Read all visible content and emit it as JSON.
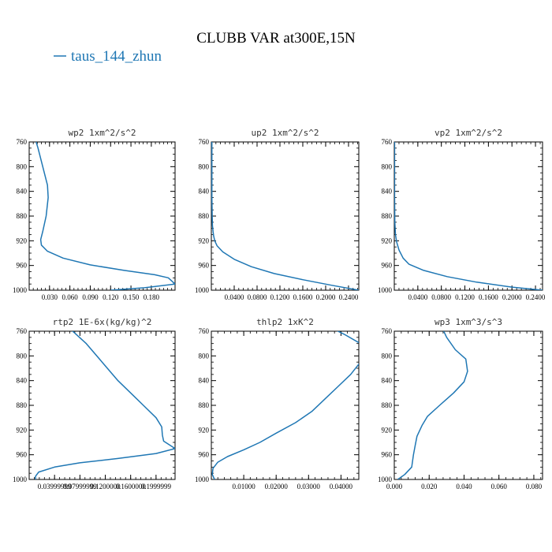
{
  "title": "CLUBB VAR at300E,15N",
  "legend": {
    "label": "taus_144_zhun",
    "color": "#1f77b4"
  },
  "chart_data": [
    {
      "type": "line",
      "name": "wp2",
      "title": "wp2  1xm^2/s^2",
      "xlim": [
        0,
        0.215
      ],
      "ylim": [
        760,
        1000
      ],
      "y_reversed": true,
      "xticks": [
        0.03,
        0.06,
        0.09,
        0.12,
        0.15,
        0.18
      ],
      "xtick_labels": [
        "0.030",
        "0.060",
        "0.090",
        "0.120",
        "0.150",
        "0.180"
      ],
      "yticks": [
        760,
        800,
        840,
        880,
        920,
        960,
        1000
      ],
      "series": [
        {
          "x": [
            0.008,
            0.013,
            0.02,
            0.027,
            0.028,
            0.025,
            0.02,
            0.017,
            0.018,
            0.027,
            0.05,
            0.09,
            0.14,
            0.185,
            0.205,
            0.215,
            0.17,
            0.12
          ],
          "y": [
            752,
            770,
            800,
            830,
            850,
            880,
            905,
            918,
            927,
            937,
            948,
            959,
            968,
            975,
            980,
            990,
            996,
            1000
          ]
        }
      ]
    },
    {
      "type": "line",
      "name": "up2",
      "title": "up2  1xm^2/s^2",
      "xlim": [
        0,
        0.258
      ],
      "ylim": [
        760,
        1000
      ],
      "y_reversed": true,
      "xticks": [
        0.04,
        0.08,
        0.12,
        0.16,
        0.2,
        0.24
      ],
      "xtick_labels": [
        "0.0400",
        "0.0800",
        "0.1200",
        "0.1600",
        "0.2000",
        "0.2400"
      ],
      "yticks": [
        760,
        800,
        840,
        880,
        920,
        960,
        1000
      ],
      "series": [
        {
          "x": [
            0.001,
            0.001,
            0.001,
            0.0015,
            0.002,
            0.003,
            0.004,
            0.006,
            0.01,
            0.02,
            0.04,
            0.07,
            0.11,
            0.16,
            0.21,
            0.258
          ],
          "y": [
            752,
            800,
            850,
            880,
            895,
            905,
            912,
            920,
            928,
            938,
            950,
            962,
            973,
            983,
            992,
            1000
          ]
        }
      ]
    },
    {
      "type": "line",
      "name": "vp2",
      "title": "vp2  1xm^2/s^2",
      "xlim": [
        0,
        0.252
      ],
      "ylim": [
        760,
        1000
      ],
      "y_reversed": true,
      "xticks": [
        0.04,
        0.08,
        0.12,
        0.16,
        0.2,
        0.24
      ],
      "xtick_labels": [
        "0.0400",
        "0.0800",
        "0.1200",
        "0.1600",
        "0.2000",
        "0.2400"
      ],
      "yticks": [
        760,
        800,
        840,
        880,
        920,
        960,
        1000
      ],
      "series": [
        {
          "x": [
            0.0005,
            0.0005,
            0.001,
            0.002,
            0.004,
            0.008,
            0.015,
            0.025,
            0.05,
            0.09,
            0.14,
            0.2,
            0.252
          ],
          "y": [
            752,
            850,
            890,
            910,
            922,
            935,
            948,
            958,
            968,
            978,
            987,
            995,
            1000
          ]
        }
      ]
    },
    {
      "type": "line",
      "name": "rtp2",
      "title": "rtp2  1E-6x(kg/kg)^2",
      "xlim": [
        0,
        0.23
      ],
      "ylim": [
        760,
        1000
      ],
      "y_reversed": true,
      "xticks": [
        0.04,
        0.08,
        0.12,
        0.16,
        0.2
      ],
      "xtick_labels": [
        "0.03999999",
        "0.07999999",
        "0.1200000",
        "0.1600000",
        "0.1999999"
      ],
      "yticks": [
        760,
        800,
        840,
        880,
        920,
        960,
        1000
      ],
      "series": [
        {
          "x": [
            0.06,
            0.09,
            0.115,
            0.14,
            0.16,
            0.18,
            0.2,
            0.209,
            0.21,
            0.212,
            0.23,
            0.2,
            0.14,
            0.08,
            0.04,
            0.015,
            0.01,
            0.01
          ],
          "y": [
            752,
            780,
            810,
            840,
            860,
            880,
            900,
            915,
            928,
            938,
            950,
            958,
            966,
            973,
            980,
            988,
            995,
            1000
          ]
        }
      ]
    },
    {
      "type": "line",
      "name": "thlp2",
      "title": "thlp2  1xK^2",
      "xlim": [
        0,
        0.0455
      ],
      "ylim": [
        760,
        1000
      ],
      "y_reversed": true,
      "xticks": [
        0.01,
        0.02,
        0.03,
        0.04
      ],
      "xtick_labels": [
        "0.01000",
        "0.02000",
        "0.03000",
        "0.04000"
      ],
      "yticks": [
        760,
        800,
        840,
        880,
        920,
        960,
        1000
      ],
      "series": [
        {
          "x": [
            0.036,
            0.041,
            0.046,
            0.047,
            0.046,
            0.043,
            0.039,
            0.035,
            0.031,
            0.026,
            0.02,
            0.015,
            0.01,
            0.005,
            0.002,
            0.0005,
            0.0003,
            0.001
          ],
          "y": [
            752,
            765,
            780,
            795,
            810,
            830,
            850,
            870,
            890,
            908,
            925,
            940,
            952,
            963,
            972,
            982,
            992,
            1000
          ]
        }
      ]
    },
    {
      "type": "line",
      "name": "wp3",
      "title": "wp3  1xm^3/s^3",
      "xlim": [
        0,
        0.085
      ],
      "ylim": [
        760,
        1000
      ],
      "y_reversed": true,
      "xticks": [
        0,
        0.02,
        0.04,
        0.06,
        0.08
      ],
      "xtick_labels": [
        "0.000",
        "0.020",
        "0.040",
        "0.060",
        "0.080"
      ],
      "yticks": [
        760,
        800,
        840,
        880,
        920,
        960,
        1000
      ],
      "series": [
        {
          "x": [
            0.027,
            0.03,
            0.035,
            0.041,
            0.042,
            0.04,
            0.034,
            0.026,
            0.019,
            0.016,
            0.013,
            0.012,
            0.011,
            0.01,
            0.006,
            0.002
          ],
          "y": [
            752,
            770,
            790,
            805,
            825,
            842,
            860,
            880,
            898,
            912,
            930,
            945,
            960,
            980,
            992,
            1000
          ]
        }
      ]
    }
  ]
}
